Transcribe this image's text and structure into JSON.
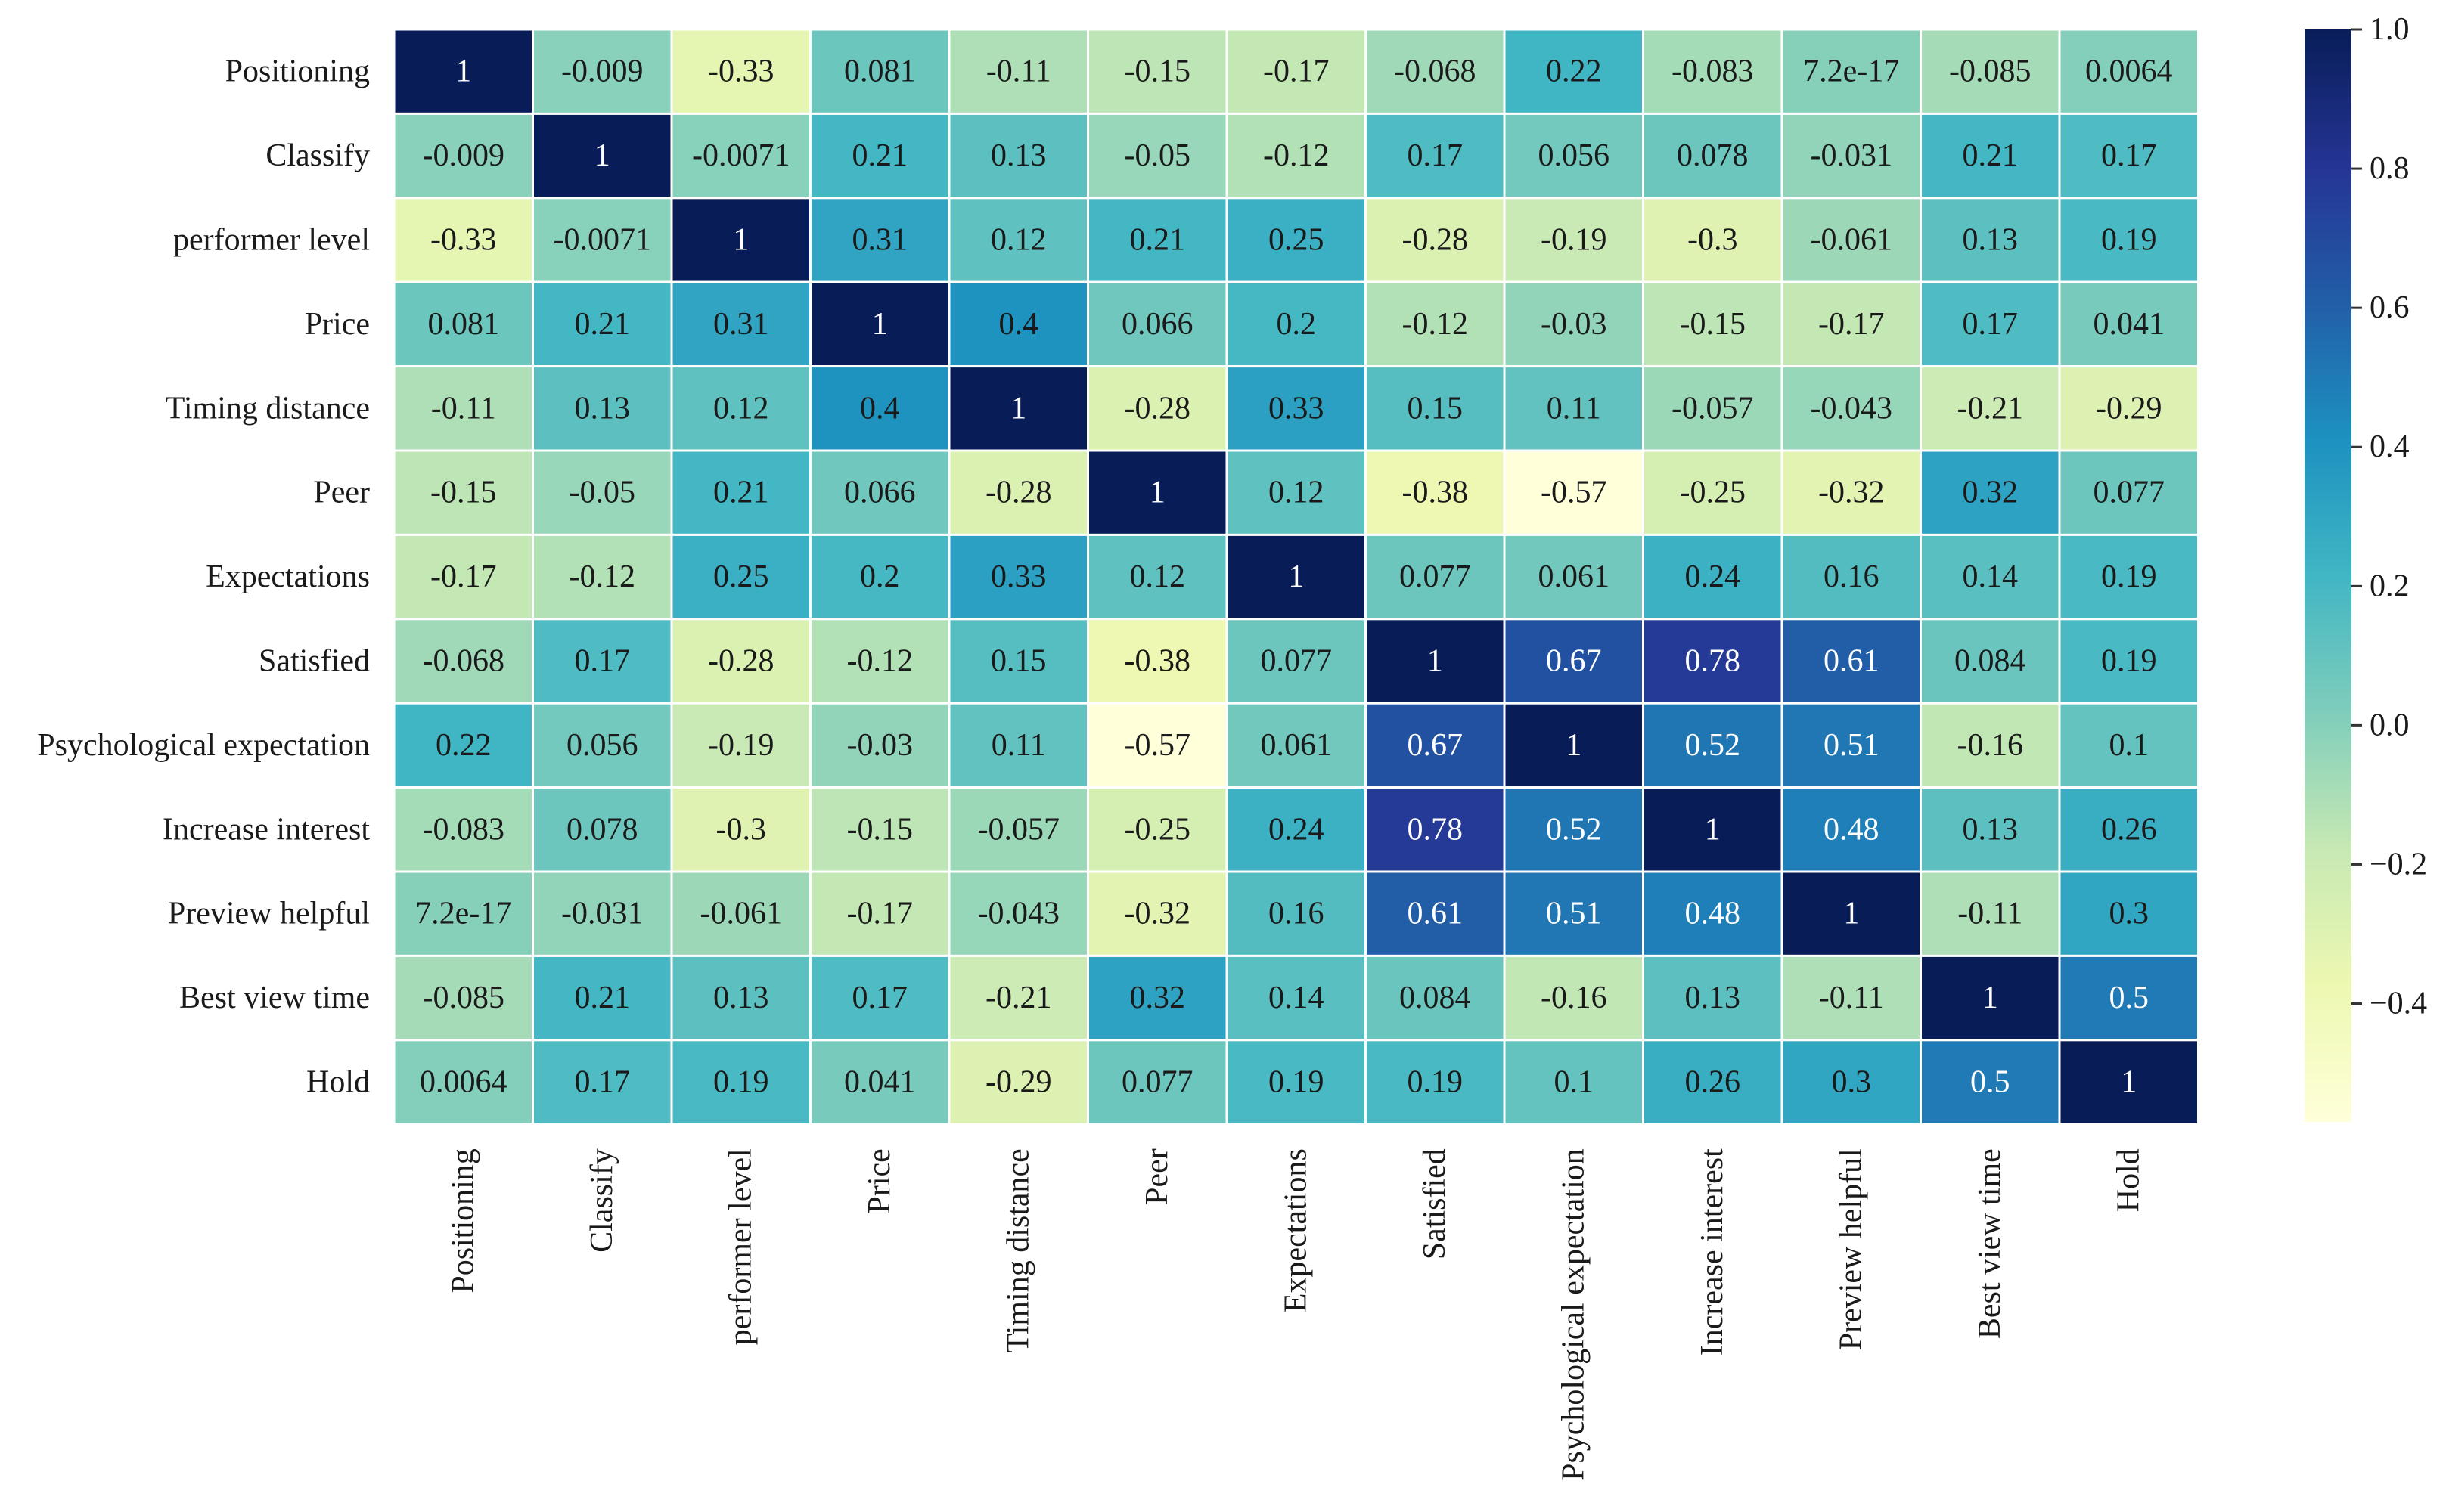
{
  "chart_data": {
    "type": "heatmap",
    "title": "",
    "xlabel": "",
    "ylabel": "",
    "labels": [
      "Positioning",
      "Classify",
      "performer level",
      "Price",
      "Timing distance",
      "Peer",
      "Expectations",
      "Satisfied",
      "Psychological expectation",
      "Increase interest",
      "Preview helpful",
      "Best view time",
      "Hold"
    ],
    "values": [
      [
        1,
        -0.009,
        -0.33,
        0.081,
        -0.11,
        -0.15,
        -0.17,
        -0.068,
        0.22,
        -0.083,
        7.2e-17,
        -0.085,
        0.0064
      ],
      [
        -0.009,
        1,
        -0.0071,
        0.21,
        0.13,
        -0.05,
        -0.12,
        0.17,
        0.056,
        0.078,
        -0.031,
        0.21,
        0.17
      ],
      [
        -0.33,
        -0.0071,
        1,
        0.31,
        0.12,
        0.21,
        0.25,
        -0.28,
        -0.19,
        -0.3,
        -0.061,
        0.13,
        0.19
      ],
      [
        0.081,
        0.21,
        0.31,
        1,
        0.4,
        0.066,
        0.2,
        -0.12,
        -0.03,
        -0.15,
        -0.17,
        0.17,
        0.041
      ],
      [
        -0.11,
        0.13,
        0.12,
        0.4,
        1,
        -0.28,
        0.33,
        0.15,
        0.11,
        -0.057,
        -0.043,
        -0.21,
        -0.29
      ],
      [
        -0.15,
        -0.05,
        0.21,
        0.066,
        -0.28,
        1,
        0.12,
        -0.38,
        -0.57,
        -0.25,
        -0.32,
        0.32,
        0.077
      ],
      [
        -0.17,
        -0.12,
        0.25,
        0.2,
        0.33,
        0.12,
        1,
        0.077,
        0.061,
        0.24,
        0.16,
        0.14,
        0.19
      ],
      [
        -0.068,
        0.17,
        -0.28,
        -0.12,
        0.15,
        -0.38,
        0.077,
        1,
        0.67,
        0.78,
        0.61,
        0.084,
        0.19
      ],
      [
        0.22,
        0.056,
        -0.19,
        -0.03,
        0.11,
        -0.57,
        0.061,
        0.67,
        1,
        0.52,
        0.51,
        -0.16,
        0.1
      ],
      [
        -0.083,
        0.078,
        -0.3,
        -0.15,
        -0.057,
        -0.25,
        0.24,
        0.78,
        0.52,
        1,
        0.48,
        0.13,
        0.26
      ],
      [
        7.2e-17,
        -0.031,
        -0.061,
        -0.17,
        -0.043,
        -0.32,
        0.16,
        0.61,
        0.51,
        0.48,
        1,
        -0.11,
        0.3
      ],
      [
        -0.085,
        0.21,
        0.13,
        0.17,
        -0.21,
        0.32,
        0.14,
        0.084,
        -0.16,
        0.13,
        -0.11,
        1,
        0.5
      ],
      [
        0.0064,
        0.17,
        0.19,
        0.041,
        -0.29,
        0.077,
        0.19,
        0.19,
        0.1,
        0.26,
        0.3,
        0.5,
        1
      ]
    ],
    "cell_labels": [
      [
        "1",
        "-0.009",
        "-0.33",
        "0.081",
        "-0.11",
        "-0.15",
        "-0.17",
        "-0.068",
        "0.22",
        "-0.083",
        "7.2e-17",
        "-0.085",
        "0.0064"
      ],
      [
        "-0.009",
        "1",
        "-0.0071",
        "0.21",
        "0.13",
        "-0.05",
        "-0.12",
        "0.17",
        "0.056",
        "0.078",
        "-0.031",
        "0.21",
        "0.17"
      ],
      [
        "-0.33",
        "-0.0071",
        "1",
        "0.31",
        "0.12",
        "0.21",
        "0.25",
        "-0.28",
        "-0.19",
        "-0.3",
        "-0.061",
        "0.13",
        "0.19"
      ],
      [
        "0.081",
        "0.21",
        "0.31",
        "1",
        "0.4",
        "0.066",
        "0.2",
        "-0.12",
        "-0.03",
        "-0.15",
        "-0.17",
        "0.17",
        "0.041"
      ],
      [
        "-0.11",
        "0.13",
        "0.12",
        "0.4",
        "1",
        "-0.28",
        "0.33",
        "0.15",
        "0.11",
        "-0.057",
        "-0.043",
        "-0.21",
        "-0.29"
      ],
      [
        "-0.15",
        "-0.05",
        "0.21",
        "0.066",
        "-0.28",
        "1",
        "0.12",
        "-0.38",
        "-0.57",
        "-0.25",
        "-0.32",
        "0.32",
        "0.077"
      ],
      [
        "-0.17",
        "-0.12",
        "0.25",
        "0.2",
        "0.33",
        "0.12",
        "1",
        "0.077",
        "0.061",
        "0.24",
        "0.16",
        "0.14",
        "0.19"
      ],
      [
        "-0.068",
        "0.17",
        "-0.28",
        "-0.12",
        "0.15",
        "-0.38",
        "0.077",
        "1",
        "0.67",
        "0.78",
        "0.61",
        "0.084",
        "0.19"
      ],
      [
        "0.22",
        "0.056",
        "-0.19",
        "-0.03",
        "0.11",
        "-0.57",
        "0.061",
        "0.67",
        "1",
        "0.52",
        "0.51",
        "-0.16",
        "0.1"
      ],
      [
        "-0.083",
        "0.078",
        "-0.3",
        "-0.15",
        "-0.057",
        "-0.25",
        "0.24",
        "0.78",
        "0.52",
        "1",
        "0.48",
        "0.13",
        "0.26"
      ],
      [
        "7.2e-17",
        "-0.031",
        "-0.061",
        "-0.17",
        "-0.043",
        "-0.32",
        "0.16",
        "0.61",
        "0.51",
        "0.48",
        "1",
        "-0.11",
        "0.3"
      ],
      [
        "-0.085",
        "0.21",
        "0.13",
        "0.17",
        "-0.21",
        "0.32",
        "0.14",
        "0.084",
        "-0.16",
        "0.13",
        "-0.11",
        "1",
        "0.5"
      ],
      [
        "0.0064",
        "0.17",
        "0.19",
        "0.041",
        "-0.29",
        "0.077",
        "0.19",
        "0.19",
        "0.1",
        "0.26",
        "0.3",
        "0.5",
        "1"
      ]
    ],
    "colorbar": {
      "min": -0.57,
      "max": 1.0,
      "ticks": [
        1.0,
        0.8,
        0.6,
        0.4,
        0.2,
        0.0,
        -0.2,
        -0.4
      ],
      "tick_labels": [
        "1.0",
        "0.8",
        "0.6",
        "0.4",
        "0.2",
        "0.0",
        "−0.2",
        "−0.4"
      ],
      "colormap": "YlGnBu",
      "stops": [
        "#ffffd9",
        "#edf8b1",
        "#c7e9b4",
        "#7fcdbb",
        "#41b6c4",
        "#1d91c0",
        "#225ea8",
        "#253494",
        "#081d58"
      ]
    },
    "grid": true,
    "grid_color": "#ffffff",
    "legend": "colorbar-right"
  }
}
